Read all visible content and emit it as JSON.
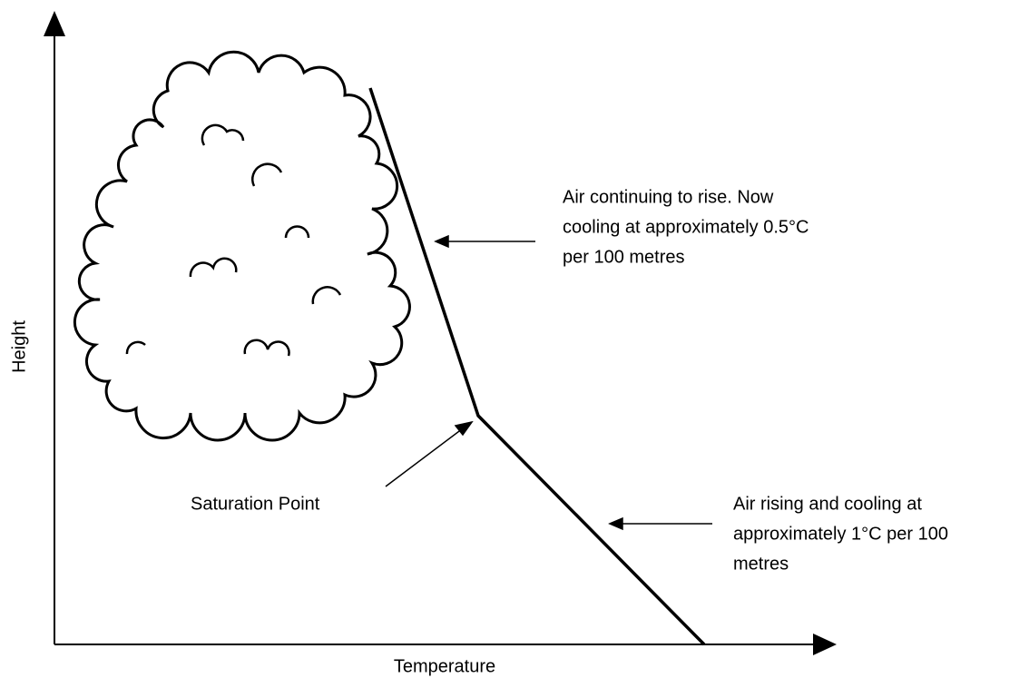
{
  "axes": {
    "y_label": "Height",
    "x_label": "Temperature"
  },
  "annotations": [
    {
      "lines": [
        "Air continuing to rise. Now",
        "cooling at approximately 0.5°C",
        "per 100 metres"
      ]
    },
    {
      "lines": [
        "Saturation Point"
      ]
    },
    {
      "lines": [
        "Air rising and cooling at",
        "approximately 1°C per 100",
        "metres"
      ]
    }
  ]
}
